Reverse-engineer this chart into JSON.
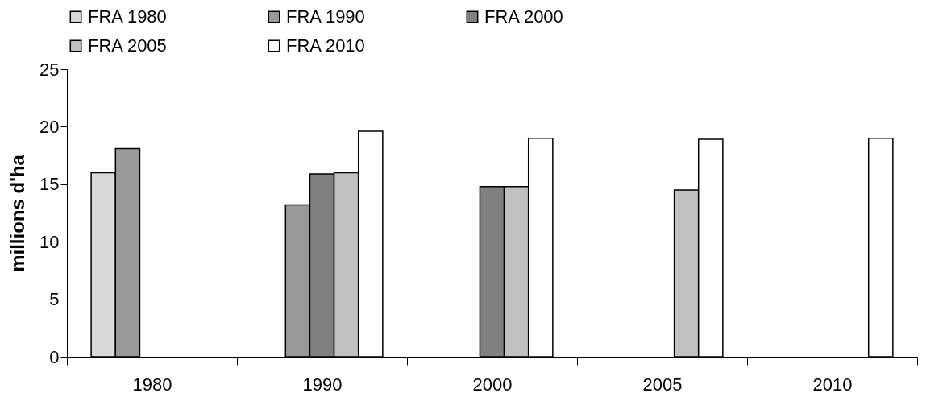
{
  "chart_data": {
    "type": "bar",
    "ylabel": "millions d'ha",
    "categories": [
      "1980",
      "1990",
      "2000",
      "2005",
      "2010"
    ],
    "series": [
      {
        "name": "FRA 1980",
        "color": "#d9d9d9",
        "values": [
          16.0,
          null,
          null,
          null,
          null
        ]
      },
      {
        "name": "FRA 1990",
        "color": "#999999",
        "values": [
          18.1,
          13.2,
          null,
          null,
          null
        ]
      },
      {
        "name": "FRA 2000",
        "color": "#808080",
        "values": [
          null,
          15.9,
          14.8,
          null,
          null
        ]
      },
      {
        "name": "FRA 2005",
        "color": "#c0c0c0",
        "values": [
          null,
          16.0,
          14.8,
          14.5,
          null
        ]
      },
      {
        "name": "FRA 2010",
        "color": "#ffffff",
        "values": [
          null,
          19.6,
          19.0,
          18.9,
          19.0
        ]
      }
    ],
    "ylim": [
      0,
      25
    ],
    "yticks": [
      0,
      5,
      10,
      15,
      20,
      25
    ],
    "grid": false,
    "legend": "top"
  }
}
